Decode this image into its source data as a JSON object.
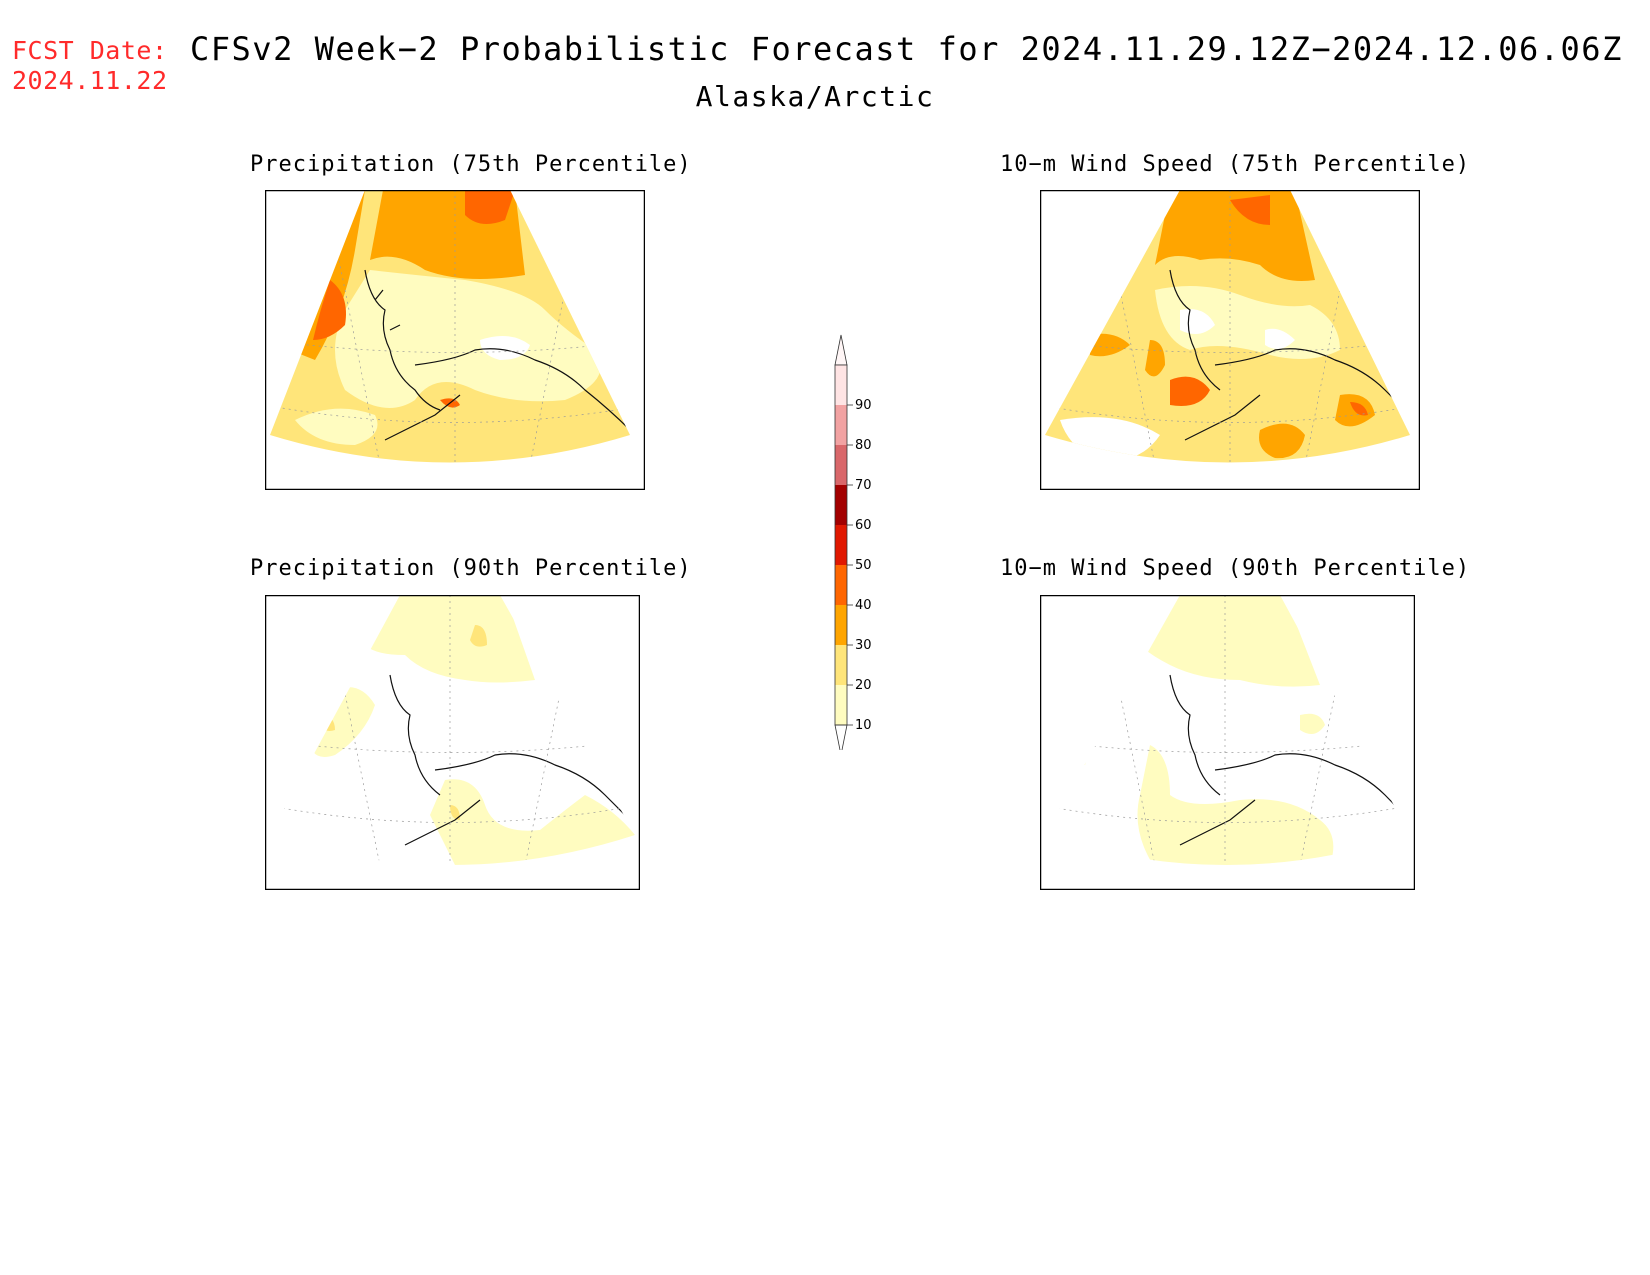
{
  "header": {
    "fcst_label": "FCST Date:",
    "fcst_date": "2024.11.22",
    "title": "CFSv2 Week−2 Probabilistic Forecast for 2024.11.29.12Z−2024.12.06.06Z",
    "subtitle": "Alaska/Arctic"
  },
  "panels": [
    {
      "title": "Precipitation (75th Percentile)",
      "dominant_category": "10-20 / 20-30",
      "hotspots": [
        "30-40",
        "40-50"
      ]
    },
    {
      "title": "10−m Wind Speed (75th Percentile)",
      "dominant_category": "20-30",
      "hotspots": [
        "30-40",
        "40-50"
      ]
    },
    {
      "title": "Precipitation (90th Percentile)",
      "dominant_category": "<10 / 10-20",
      "hotspots": [
        "20-30"
      ]
    },
    {
      "title": "10−m Wind Speed (90th Percentile)",
      "dominant_category": "<10 / 10-20",
      "hotspots": []
    }
  ],
  "colorbar": {
    "levels": [
      "10",
      "20",
      "30",
      "40",
      "50",
      "60",
      "70",
      "80",
      "90"
    ],
    "colors": [
      "#fffcc0",
      "#ffe57a",
      "#ffa500",
      "#ff6600",
      "#e01800",
      "#a30000",
      "#d9676a",
      "#f2a2a2",
      "#ffe4e4"
    ]
  }
}
